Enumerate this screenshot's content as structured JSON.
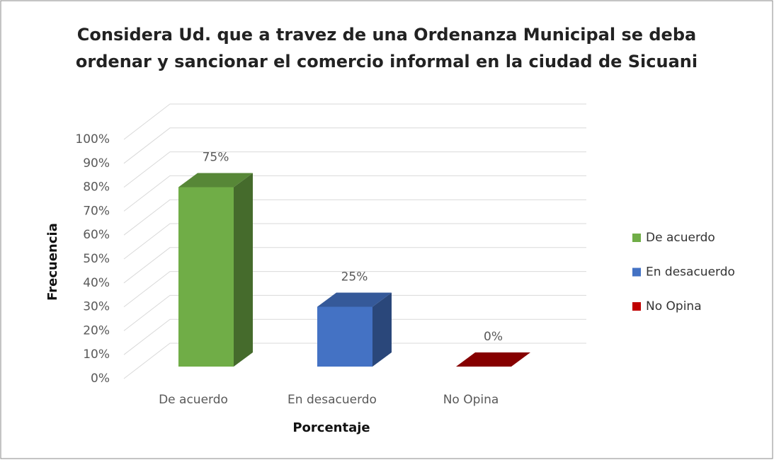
{
  "chart_data": {
    "type": "bar3d",
    "title": [
      "Considera Ud. que a travez de una Ordenanza Municipal se deba",
      "ordenar y sancionar el comercio informal en la ciudad de Sicuani"
    ],
    "xlabel": "Porcentaje",
    "ylabel": "Frecuencia",
    "categories": [
      "De acuerdo",
      "En desacuerdo",
      "No Opina"
    ],
    "values": [
      75,
      25,
      0
    ],
    "value_labels": [
      "75%",
      "25%",
      "0%"
    ],
    "colors": [
      "#70ad47",
      "#4472c4",
      "#c00000"
    ],
    "ylim": [
      0,
      100
    ],
    "yticks": [
      {
        "value": 0,
        "label": "0%"
      },
      {
        "value": 10,
        "label": "10%"
      },
      {
        "value": 20,
        "label": "20%"
      },
      {
        "value": 30,
        "label": "30%"
      },
      {
        "value": 40,
        "label": "40%"
      },
      {
        "value": 50,
        "label": "50%"
      },
      {
        "value": 60,
        "label": "60%"
      },
      {
        "value": 70,
        "label": "70%"
      },
      {
        "value": 80,
        "label": "80%"
      },
      {
        "value": 90,
        "label": "90%"
      },
      {
        "value": 100,
        "label": "100%"
      }
    ],
    "grid": true,
    "legend": "right"
  }
}
